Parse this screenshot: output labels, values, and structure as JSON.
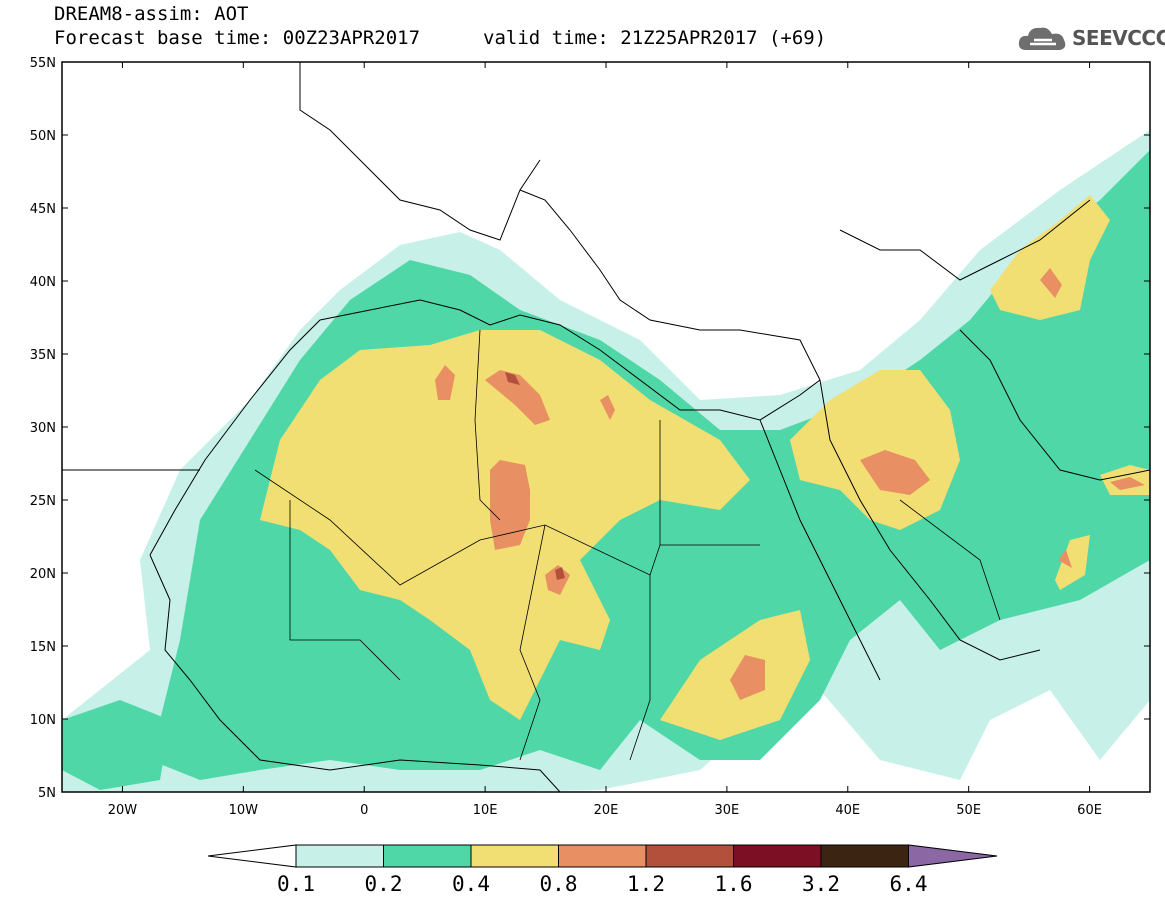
{
  "header": {
    "model_title": "DREAM8-assim: AOT",
    "base_time": "Forecast base time: 00Z23APR2017",
    "valid_time": "valid time: 21Z25APR2017 (+69)"
  },
  "logo": {
    "text": "SEEVCCC",
    "icon": "cloud-icon"
  },
  "map": {
    "lat_labels": [
      "55N",
      "50N",
      "45N",
      "40N",
      "35N",
      "30N",
      "25N",
      "20N",
      "15N",
      "10N",
      "5N"
    ],
    "lon_labels": [
      "20W",
      "10W",
      "0",
      "10E",
      "20E",
      "30E",
      "40E",
      "50E",
      "60E"
    ],
    "lat_range": [
      5,
      55
    ],
    "lon_range": [
      -25,
      65
    ]
  },
  "colorbar": {
    "levels": [
      "0.1",
      "0.2",
      "0.4",
      "0.8",
      "1.2",
      "1.6",
      "3.2",
      "6.4"
    ],
    "colors": [
      "#ffffff",
      "#c6f0e8",
      "#4fd7a8",
      "#f2df73",
      "#e88f63",
      "#b2503c",
      "#7d0f24",
      "#3c2412",
      "#8b68a4"
    ]
  }
}
